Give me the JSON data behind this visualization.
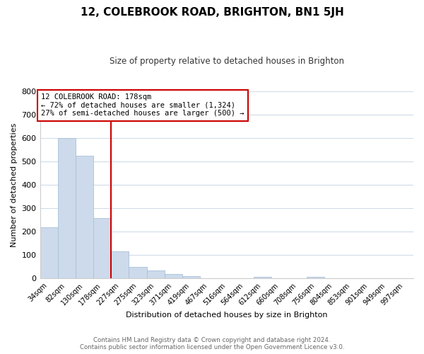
{
  "title": "12, COLEBROOK ROAD, BRIGHTON, BN1 5JH",
  "subtitle": "Size of property relative to detached houses in Brighton",
  "xlabel": "Distribution of detached houses by size in Brighton",
  "ylabel": "Number of detached properties",
  "bar_labels": [
    "34sqm",
    "82sqm",
    "130sqm",
    "178sqm",
    "227sqm",
    "275sqm",
    "323sqm",
    "371sqm",
    "419sqm",
    "467sqm",
    "516sqm",
    "564sqm",
    "612sqm",
    "660sqm",
    "708sqm",
    "756sqm",
    "804sqm",
    "853sqm",
    "901sqm",
    "949sqm",
    "997sqm"
  ],
  "bar_values": [
    220,
    600,
    525,
    258,
    115,
    50,
    33,
    18,
    10,
    2,
    0,
    0,
    8,
    0,
    0,
    7,
    0,
    0,
    0,
    0,
    0
  ],
  "bar_color": "#ccdaeb",
  "bar_edge_color": "#aac0d8",
  "vline_index": 3,
  "vline_color": "#cc0000",
  "annotation_line1": "12 COLEBROOK ROAD: 178sqm",
  "annotation_line2": "← 72% of detached houses are smaller (1,324)",
  "annotation_line3": "27% of semi-detached houses are larger (500) →",
  "annotation_box_color": "white",
  "annotation_box_edge": "#cc0000",
  "ylim": [
    0,
    800
  ],
  "yticks": [
    0,
    100,
    200,
    300,
    400,
    500,
    600,
    700,
    800
  ],
  "footer_line1": "Contains HM Land Registry data © Crown copyright and database right 2024.",
  "footer_line2": "Contains public sector information licensed under the Open Government Licence v3.0.",
  "bg_color": "#ffffff",
  "grid_color": "#d0dce8"
}
